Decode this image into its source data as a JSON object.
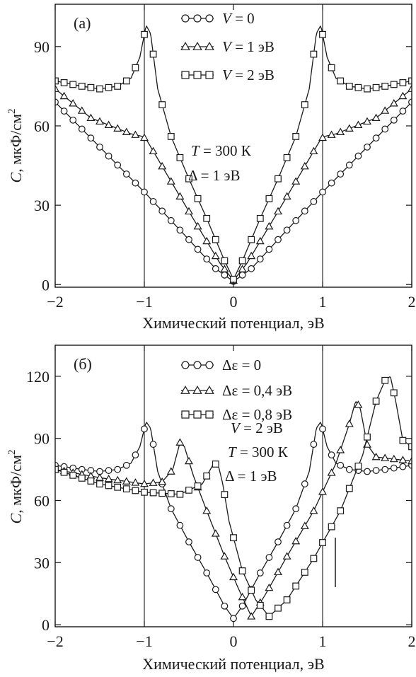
{
  "chart_data": [
    {
      "type": "line",
      "panel_label": "(a)",
      "xlabel": "Химический потенциал, эВ",
      "ylabel": "C, мкФ/см",
      "ylabel_sup": "2",
      "xlim": [
        -2,
        2
      ],
      "ylim": [
        -1,
        106
      ],
      "xticks": [
        -2,
        -1,
        0,
        1,
        2
      ],
      "xtick_labels": [
        "−2",
        "−1",
        "0",
        "1",
        "2"
      ],
      "yticks": [
        0,
        30,
        60,
        90
      ],
      "ytick_labels": [
        "0",
        "30",
        "60",
        "90"
      ],
      "vlines": [
        -1,
        1
      ],
      "legend": [
        {
          "text": "V = 0",
          "marker": "circle"
        },
        {
          "text": "V = 1 эВ",
          "marker": "triangle"
        },
        {
          "text": "V = 2 эВ",
          "marker": "square"
        }
      ],
      "annotations": [
        "T = 300 К",
        "Δ = 1 эВ"
      ],
      "series": [
        {
          "marker": "circle",
          "x": [
            -2,
            -1.5,
            -1,
            -0.5,
            -0.2,
            0,
            0.2,
            0.5,
            1,
            1.5,
            2
          ],
          "y": [
            69,
            52,
            35,
            17,
            6,
            1.2,
            6,
            17,
            35,
            52,
            69
          ]
        },
        {
          "marker": "triangle",
          "x": [
            -2,
            -1.6,
            -1.3,
            -1.15,
            -1.02,
            -0.98,
            -0.7,
            -0.4,
            -0.15,
            0,
            0.15,
            0.4,
            0.7,
            0.98,
            1.02,
            1.15,
            1.3,
            1.6,
            2
          ],
          "y": [
            74,
            63,
            59,
            57,
            56,
            55,
            39,
            22,
            8,
            1.5,
            8,
            22,
            39,
            55,
            56,
            57,
            59,
            63,
            74
          ]
        },
        {
          "marker": "square",
          "x": [
            -2,
            -1.7,
            -1.5,
            -1.3,
            -1.15,
            -1.05,
            -0.98,
            -0.93,
            -0.85,
            -0.7,
            -0.5,
            -0.3,
            -0.1,
            0,
            0.1,
            0.3,
            0.5,
            0.7,
            0.85,
            0.93,
            0.98,
            1.05,
            1.15,
            1.3,
            1.5,
            1.7,
            2
          ],
          "y": [
            77,
            75,
            74,
            75,
            78,
            86,
            98,
            95,
            74,
            56,
            40,
            25,
            9,
            2,
            9,
            25,
            40,
            56,
            74,
            95,
            98,
            86,
            78,
            75,
            74,
            75,
            77
          ]
        }
      ]
    },
    {
      "type": "line",
      "panel_label": "(б)",
      "xlabel": "Химический потенциал, эВ",
      "ylabel": "C, мкФ/см",
      "ylabel_sup": "2",
      "xlim": [
        -2,
        2
      ],
      "ylim": [
        -1,
        135
      ],
      "xticks": [
        -2,
        -1,
        0,
        1,
        2
      ],
      "xtick_labels": [
        "−2",
        "−1",
        "0",
        "1",
        "2"
      ],
      "yticks": [
        0,
        30,
        60,
        90,
        120
      ],
      "ytick_labels": [
        "0",
        "30",
        "60",
        "90",
        "120"
      ],
      "vlines": [
        -1,
        1
      ],
      "legend": [
        {
          "text": "Δε = 0",
          "marker": "circle"
        },
        {
          "text": "Δε = 0,4 эВ",
          "marker": "triangle"
        },
        {
          "text": "Δε = 0,8 эВ",
          "marker": "square"
        }
      ],
      "annotations": [
        "V = 2 эВ",
        "T = 300 К",
        "Δ = 1 эВ"
      ],
      "series": [
        {
          "marker": "circle",
          "x": [
            -2,
            -1.7,
            -1.5,
            -1.3,
            -1.15,
            -1.05,
            -0.98,
            -0.93,
            -0.85,
            -0.7,
            -0.5,
            -0.3,
            -0.1,
            0,
            0.1,
            0.3,
            0.5,
            0.7,
            0.85,
            0.93,
            0.98,
            1.05,
            1.15,
            1.3,
            1.5,
            1.7,
            2
          ],
          "y": [
            77,
            75,
            74,
            75,
            78,
            86,
            98,
            95,
            74,
            56,
            40,
            25,
            9,
            3,
            9,
            25,
            40,
            56,
            74,
            95,
            98,
            86,
            78,
            75,
            74,
            75,
            77
          ]
        },
        {
          "marker": "triangle",
          "x": [
            -2,
            -1.5,
            -1.0,
            -0.8,
            -0.68,
            -0.6,
            -0.55,
            -0.45,
            -0.3,
            -0.1,
            0.05,
            0.2,
            0.35,
            0.6,
            0.9,
            1.15,
            1.3,
            1.37,
            1.42,
            1.5,
            1.6,
            1.8,
            2
          ],
          "y": [
            75,
            71,
            68,
            69,
            75,
            88,
            86,
            72,
            55,
            33,
            18,
            4,
            14,
            33,
            55,
            78,
            97,
            108,
            105,
            87,
            81,
            80,
            79
          ]
        },
        {
          "marker": "square",
          "x": [
            -2,
            -1.5,
            -1.0,
            -0.6,
            -0.35,
            -0.22,
            -0.17,
            -0.12,
            -0.05,
            0.1,
            0.25,
            0.4,
            0.6,
            0.9,
            1.2,
            1.45,
            1.6,
            1.7,
            1.76,
            1.82,
            1.9,
            2
          ],
          "y": [
            75,
            68,
            64,
            63,
            68,
            78,
            77,
            68,
            50,
            26,
            12,
            4,
            12,
            32,
            55,
            82,
            108,
            118,
            120,
            108,
            89,
            86
          ]
        }
      ]
    }
  ]
}
